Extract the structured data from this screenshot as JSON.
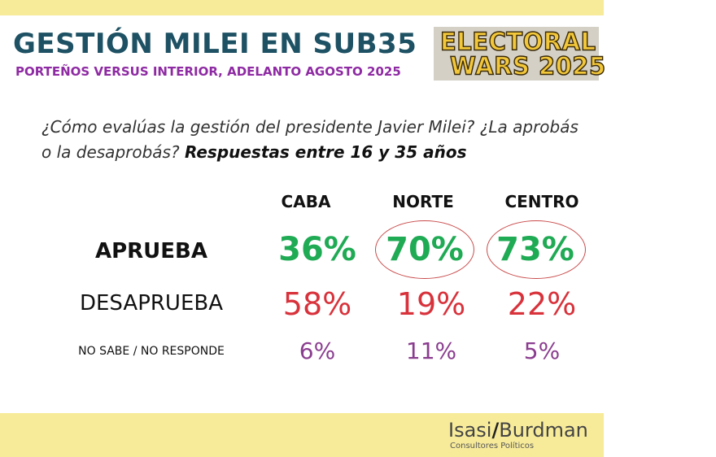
{
  "header": {
    "title": "GESTIÓN MILEI EN SUB35",
    "subtitle": "PORTEÑOS VERSUS INTERIOR, ADELANTO AGOSTO 2025",
    "logo_line1": "ELECTORAL",
    "logo_line2": "WARS 2025"
  },
  "question": {
    "text": "¿Cómo evalúas la gestión del presidente Javier Milei? ¿La aprobás o la desaprobás? ",
    "bold": "Respuestas entre 16 y 35 años"
  },
  "colors": {
    "approve": "#1faa54",
    "disapprove": "#d8323b",
    "unknown": "#8a3d8f",
    "highlight_circle": "#c94a4a"
  },
  "chart_data": {
    "type": "table",
    "categories": [
      "CABA",
      "NORTE",
      "CENTRO"
    ],
    "series": [
      {
        "name": "APRUEBA",
        "values": [
          36,
          70,
          73
        ]
      },
      {
        "name": "DESAPRUEBA",
        "values": [
          58,
          19,
          22
        ]
      },
      {
        "name": "NO SABE / NO RESPONDE",
        "values": [
          6,
          11,
          5
        ]
      }
    ],
    "unit": "%",
    "highlighted": [
      "NORTE APRUEBA",
      "CENTRO APRUEBA"
    ],
    "labels": {
      "approve": [
        "36%",
        "70%",
        "73%"
      ],
      "disapprove": [
        "58%",
        "19%",
        "22%"
      ],
      "unknown": [
        "6%",
        "11%",
        "5%"
      ]
    }
  },
  "footer": {
    "brand_left": "Isasi",
    "brand_slash": "/",
    "brand_right": "Burdman",
    "brand_sub": "Consultores Políticos"
  }
}
